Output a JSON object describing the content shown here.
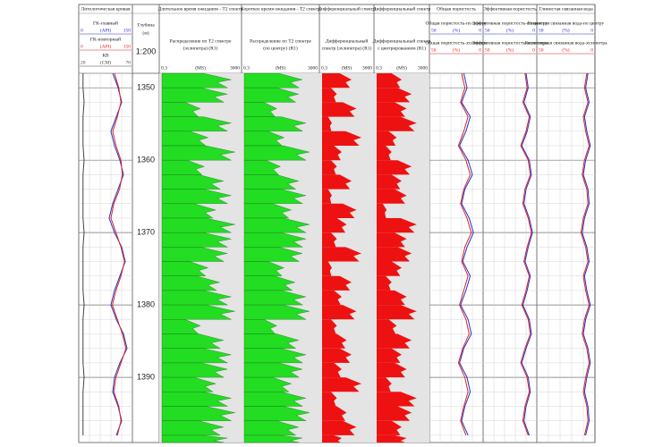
{
  "depth": {
    "title": "Глубина",
    "unit": "(м)",
    "scale": "1:200",
    "lim": [
      1348,
      1399
    ],
    "ticks": [
      1350,
      1360,
      1370,
      1380,
      1390
    ],
    "samples": [
      1348,
      1350,
      1352,
      1354,
      1356,
      1358,
      1360,
      1362,
      1364,
      1366,
      1368,
      1370,
      1372,
      1374,
      1376,
      1378,
      1380,
      1382,
      1384,
      1386,
      1388,
      1390,
      1392,
      1394,
      1396,
      1398
    ]
  },
  "tracks": [
    {
      "title": "Литологическая кривая",
      "curves": [
        {
          "name": "ГК-главный",
          "color": "#2233cc",
          "scale": [
            0,
            150
          ],
          "unit": "(API)",
          "values": [
            95,
            110,
            120,
            105,
            90,
            100,
            115,
            125,
            110,
            95,
            85,
            100,
            120,
            130,
            115,
            100,
            90,
            105,
            125,
            135,
            115,
            100,
            95,
            110,
            120,
            105
          ]
        },
        {
          "name": "ГК-повторный",
          "color": "#dd2222",
          "scale": [
            0,
            150
          ],
          "unit": "(API)",
          "values": [
            100,
            112,
            118,
            108,
            95,
            104,
            118,
            122,
            114,
            98,
            90,
            104,
            118,
            128,
            118,
            104,
            94,
            108,
            122,
            132,
            118,
            104,
            98,
            112,
            118,
            108
          ]
        },
        {
          "name": "КВ",
          "color": "#444444",
          "scale": [
            20,
            70
          ],
          "unit": "(СМ)",
          "values": [
            24,
            24,
            25,
            24,
            24,
            24,
            25,
            24,
            24,
            24,
            24,
            25,
            24,
            24,
            24,
            24,
            25,
            24,
            24,
            24,
            24,
            25,
            24,
            24,
            24,
            24
          ]
        }
      ]
    },
    {
      "title": "Длительное время ожидания - T2 спектр",
      "spectrum": {
        "label": [
          "Распределение по T2 спектре",
          "(эхлипетра) (R1)"
        ],
        "color": "#22dd22",
        "scale": [
          0.3,
          3000
        ],
        "unit": "(MS)",
        "values": [
          0.9,
          0.85,
          0.5,
          0.9,
          0.6,
          0.95,
          0.55,
          0.8,
          0.9,
          0.7,
          0.95,
          0.9,
          0.85,
          0.6,
          0.75,
          0.9,
          0.95,
          0.5,
          0.8,
          0.9,
          0.85,
          0.7,
          0.9,
          0.95,
          0.8,
          0.85
        ]
      }
    },
    {
      "title": "Короткое время ожидания - T2 спектр",
      "spectrum": {
        "label": [
          "Распределение по T2 спектре",
          "(по центру) (R1)"
        ],
        "color": "#22dd22",
        "scale": [
          0.3,
          3000
        ],
        "unit": "(MS)",
        "values": [
          0.8,
          0.75,
          0.45,
          0.85,
          0.55,
          0.9,
          0.5,
          0.75,
          0.85,
          0.65,
          0.9,
          0.85,
          0.8,
          0.55,
          0.7,
          0.85,
          0.9,
          0.45,
          0.75,
          0.85,
          0.8,
          0.65,
          0.85,
          0.9,
          0.75,
          0.8
        ]
      }
    },
    {
      "title": "Дифференциальный спектр",
      "spectrum": {
        "label": [
          "Дифференциальный",
          "спектр (эхлипетра) (R1)"
        ],
        "color": "#ee1111",
        "scale": [
          0.3,
          3000
        ],
        "unit": "(MS)",
        "values": [
          0.6,
          0.3,
          0.7,
          0.2,
          0.8,
          0.4,
          0.3,
          0.6,
          0.2,
          0.7,
          0.5,
          0.3,
          0.8,
          0.2,
          0.6,
          0.4,
          0.7,
          0.3,
          0.5,
          0.6,
          0.4,
          0.8,
          0.3,
          0.5,
          0.7,
          0.4
        ]
      }
    },
    {
      "title": "Дифференциальный спектр",
      "spectrum": {
        "label": [
          "Дифференциальный спектр",
          "с центрированием (R1)"
        ],
        "color": "#ee1111",
        "scale": [
          0.3,
          3000
        ],
        "unit": "(MS)",
        "values": [
          0.5,
          0.7,
          0.6,
          0.8,
          0.4,
          0.3,
          0.7,
          0.5,
          0.6,
          0.2,
          0.8,
          0.6,
          0.7,
          0.5,
          0.3,
          0.6,
          0.8,
          0.4,
          0.7,
          0.5,
          0.6,
          0.3,
          0.8,
          0.7,
          0.5,
          0.6
        ]
      }
    },
    {
      "title": "Общая пористость",
      "curves": [
        {
          "name": "Общая пористость-по центру",
          "color": "#2233cc",
          "scale": [
            50,
            0
          ],
          "unit": "(%)",
          "values": [
            18,
            15,
            20,
            12,
            16,
            22,
            14,
            10,
            17,
            20,
            13,
            9,
            15,
            19,
            12,
            16,
            21,
            14,
            11,
            18,
            22,
            15,
            12,
            17,
            20,
            14
          ]
        },
        {
          "name": "Общая пористость-эхлипетра",
          "color": "#dd2222",
          "scale": [
            50,
            0
          ],
          "unit": "(%)",
          "values": [
            20,
            17,
            21,
            14,
            18,
            23,
            16,
            12,
            18,
            21,
            15,
            11,
            17,
            20,
            14,
            18,
            22,
            16,
            13,
            19,
            23,
            17,
            14,
            18,
            21,
            16
          ]
        }
      ]
    },
    {
      "title": "Эффективная пористость",
      "curves": [
        {
          "name": "Эффективная пористость-по центру",
          "color": "#2233cc",
          "scale": [
            50,
            0
          ],
          "unit": "(%)",
          "values": [
            10,
            8,
            12,
            6,
            9,
            14,
            7,
            5,
            10,
            12,
            7,
            4,
            8,
            11,
            6,
            9,
            13,
            7,
            5,
            10,
            14,
            8,
            6,
            10,
            12,
            7
          ]
        },
        {
          "name": "Эффективная пористость-эхлипетра",
          "color": "#dd2222",
          "scale": [
            50,
            0
          ],
          "unit": "(%)",
          "values": [
            11,
            9,
            13,
            7,
            10,
            15,
            8,
            6,
            11,
            13,
            8,
            5,
            9,
            12,
            7,
            10,
            14,
            8,
            6,
            11,
            15,
            9,
            7,
            11,
            13,
            8
          ]
        }
      ]
    },
    {
      "title": "Глинистая связанная вода",
      "curves": [
        {
          "name": "Глинистая связанная вода-по центру",
          "color": "#2233cc",
          "scale": [
            50,
            0
          ],
          "unit": "(%)",
          "values": [
            6,
            8,
            5,
            9,
            7,
            4,
            8,
            10,
            6,
            5,
            9,
            11,
            7,
            5,
            9,
            7,
            4,
            8,
            10,
            6,
            4,
            7,
            9,
            6,
            5,
            8
          ]
        },
        {
          "name": "Капиллярная связанная вода-эхлипетра",
          "color": "#dd2222",
          "scale": [
            50,
            0
          ],
          "unit": "(%)",
          "values": [
            7,
            9,
            6,
            10,
            8,
            5,
            9,
            11,
            7,
            6,
            10,
            12,
            8,
            6,
            10,
            8,
            5,
            9,
            11,
            7,
            5,
            8,
            10,
            7,
            6,
            9
          ]
        }
      ]
    }
  ]
}
